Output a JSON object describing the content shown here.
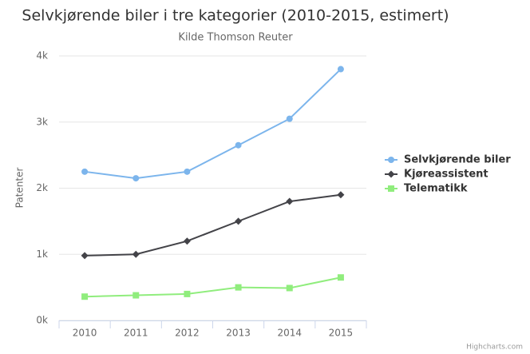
{
  "chart_data": {
    "type": "line",
    "title": "Selvkjørende biler i tre kategorier (2010-2015, estimert)",
    "subtitle": "Kilde Thomson Reuter",
    "y_label": "Patenter",
    "credits": "Highcharts.com",
    "categories": [
      "2010",
      "2011",
      "2012",
      "2013",
      "2014",
      "2015"
    ],
    "series": [
      {
        "name": "Selvkjørende biler",
        "color": "#7cb5ec",
        "marker": "circle",
        "values": [
          2250,
          2150,
          2250,
          2650,
          3050,
          3800
        ]
      },
      {
        "name": "Kjøreassistent",
        "color": "#434348",
        "marker": "diamond",
        "values": [
          980,
          1000,
          1200,
          1500,
          1800,
          1900
        ]
      },
      {
        "name": "Telematikk",
        "color": "#90ed7d",
        "marker": "square",
        "values": [
          360,
          380,
          400,
          500,
          490,
          650
        ]
      }
    ],
    "ylim": [
      0,
      4000
    ],
    "yticks": [
      {
        "value": 0,
        "label": "0k"
      },
      {
        "value": 1000,
        "label": "1k"
      },
      {
        "value": 2000,
        "label": "2k"
      },
      {
        "value": 3000,
        "label": "3k"
      },
      {
        "value": 4000,
        "label": "4k"
      }
    ],
    "grid": true,
    "legend": "right"
  }
}
